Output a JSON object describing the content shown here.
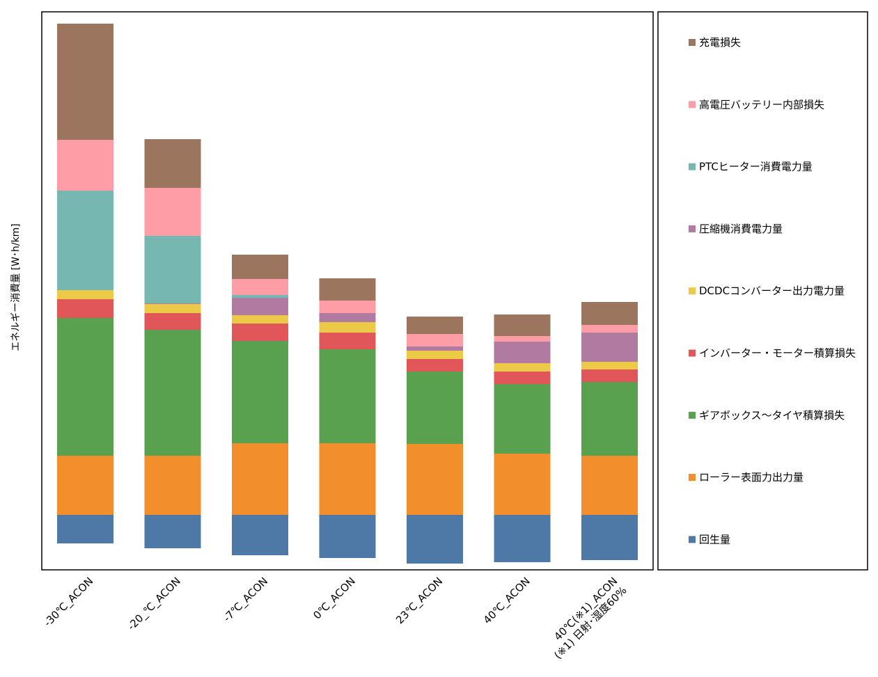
{
  "chart_data": {
    "type": "bar",
    "stacked": true,
    "ylabel": "エネルギー消費量 [W･h/km]",
    "ylim": [
      -40,
      790
    ],
    "grid": false,
    "legend_position": "right",
    "categories": [
      [
        "-30℃_ACON"
      ],
      [
        "-20_℃_ACON"
      ],
      [
        "-7℃_ACON"
      ],
      [
        "0℃_ACON"
      ],
      [
        "23℃_ACON"
      ],
      [
        "40℃_ACON"
      ],
      [
        "40℃(※1)_ACON",
        "(※1) 日射･湿度60%"
      ]
    ],
    "regen": {
      "name": "回生量",
      "color": "#4E79A7",
      "values": [
        -41,
        -48,
        -58,
        -62,
        -70,
        -68,
        -65
      ]
    },
    "series": [
      {
        "name": "ローラー表面力出力量",
        "color": "#F28E2B",
        "values": [
          85,
          85,
          103,
          103,
          102,
          88,
          85
        ]
      },
      {
        "name": "ギアボックス～タイヤ積算損失",
        "color": "#59A14F",
        "values": [
          198,
          181,
          147,
          135,
          104,
          100,
          106
        ]
      },
      {
        "name": "インバーター・モーター積算損失",
        "color": "#E15759",
        "values": [
          27,
          24,
          25,
          24,
          18,
          18,
          18
        ]
      },
      {
        "name": "DCDCコンバーター出力電力量",
        "color": "#EDC948",
        "values": [
          13,
          13,
          12,
          15,
          12,
          12,
          11
        ]
      },
      {
        "name": "圧縮機消費電力量",
        "color": "#B07AA1",
        "values": [
          0,
          1,
          25,
          13,
          6,
          31,
          42
        ]
      },
      {
        "name": "PTCヒーター消費電力量",
        "color": "#76B7B2",
        "values": [
          143,
          97,
          4,
          0,
          0,
          0,
          0
        ]
      },
      {
        "name": "高電圧バッテリー内部損失",
        "color": "#FF9DA7",
        "values": [
          73,
          69,
          23,
          18,
          18,
          8,
          11
        ]
      },
      {
        "name": "充電損失",
        "color": "#9C755F",
        "values": [
          167,
          70,
          35,
          32,
          25,
          31,
          33
        ]
      }
    ],
    "legend_order": [
      "充電損失",
      "高電圧バッテリー内部損失",
      "PTCヒーター消費電力量",
      "圧縮機消費電力量",
      "DCDCコンバーター出力電力量",
      "インバーター・モーター積算損失",
      "ギアボックス～タイヤ積算損失",
      "ローラー表面力出力量",
      "回生量"
    ]
  }
}
